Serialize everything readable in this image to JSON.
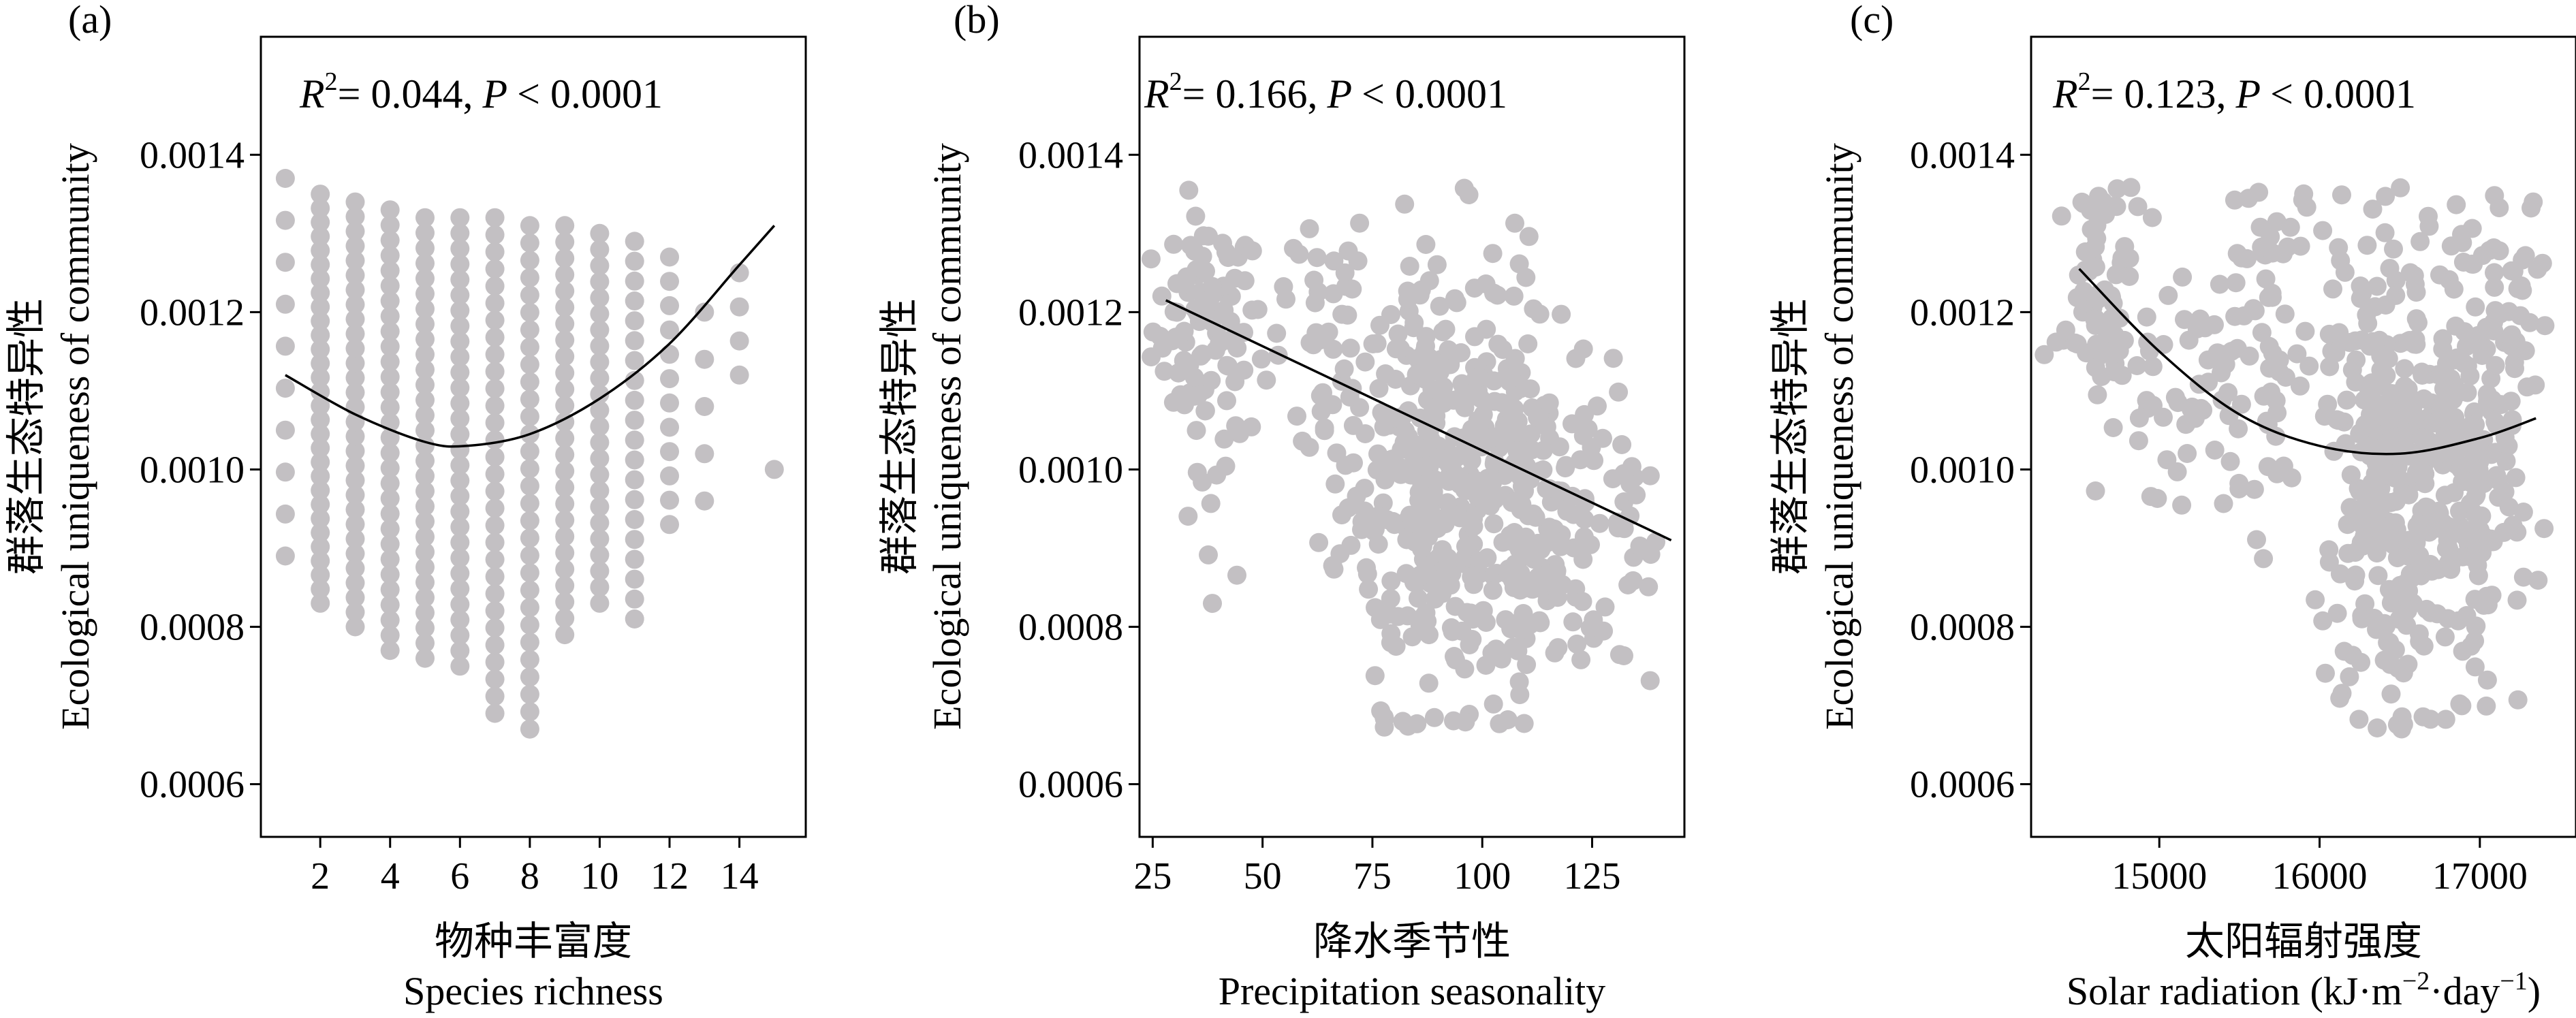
{
  "chart_data": [
    {
      "type": "scatter",
      "panel": "(a)",
      "annotation": {
        "r2_label": "R",
        "r2_value": "= 0.044,",
        "p_label": "P",
        "p_value": "< 0.0001"
      },
      "xlabel_cn": "物种丰富度",
      "xlabel_en": "Species richness",
      "ylabel_cn": "群落生态特异性",
      "ylabel_en": "Ecological uniqueness of community",
      "xlim": [
        0.3,
        15.9
      ],
      "ylim": [
        0.000533,
        0.00155
      ],
      "xticks": [
        2,
        4,
        6,
        8,
        10,
        12,
        14
      ],
      "xtick_labels": [
        "2",
        "4",
        "6",
        "8",
        "10",
        "12",
        "14"
      ],
      "yticks": [
        0.0006,
        0.0008,
        0.001,
        0.0012,
        0.0014
      ],
      "ytick_labels": [
        "0.0006",
        "0.0008",
        "0.0010",
        "0.0012",
        "0.0014"
      ],
      "columns": [
        {
          "x": 1,
          "ymin": 0.00089,
          "ymax": 0.00137,
          "n": 10
        },
        {
          "x": 2,
          "ymin": 0.00083,
          "ymax": 0.00135,
          "n": 30
        },
        {
          "x": 3,
          "ymin": 0.0008,
          "ymax": 0.00134,
          "n": 30
        },
        {
          "x": 4,
          "ymin": 0.00077,
          "ymax": 0.00133,
          "n": 30
        },
        {
          "x": 5,
          "ymin": 0.00076,
          "ymax": 0.00132,
          "n": 30
        },
        {
          "x": 6,
          "ymin": 0.00075,
          "ymax": 0.00132,
          "n": 30
        },
        {
          "x": 7,
          "ymin": 0.00069,
          "ymax": 0.00132,
          "n": 30
        },
        {
          "x": 8,
          "ymin": 0.00067,
          "ymax": 0.00131,
          "n": 30
        },
        {
          "x": 9,
          "ymin": 0.00079,
          "ymax": 0.00131,
          "n": 26
        },
        {
          "x": 10,
          "ymin": 0.00083,
          "ymax": 0.0013,
          "n": 24
        },
        {
          "x": 11,
          "ymin": 0.00081,
          "ymax": 0.00129,
          "n": 20
        },
        {
          "x": 12,
          "ymin": 0.00093,
          "ymax": 0.00127,
          "n": 12
        },
        {
          "x": 13,
          "ymin": 0.00096,
          "ymax": 0.0012,
          "n": 5
        },
        {
          "x": 14,
          "ymin": 0.00112,
          "ymax": 0.00125,
          "n": 4
        },
        {
          "x": 15,
          "ymin": 0.001,
          "ymax": 0.001,
          "n": 1
        }
      ],
      "fit": {
        "type": "quadratic",
        "x": [
          1,
          3,
          5,
          6.2,
          8,
          10,
          12,
          14,
          15
        ],
        "y": [
          0.00112,
          0.00107,
          0.001035,
          0.00103,
          0.001045,
          0.00109,
          0.00116,
          0.00126,
          0.00131
        ]
      }
    },
    {
      "type": "scatter",
      "panel": "(b)",
      "annotation": {
        "r2_label": "R",
        "r2_value": "= 0.166,",
        "p_label": "P",
        "p_value": "< 0.0001"
      },
      "xlabel_cn": "降水季节性",
      "xlabel_en": "Precipitation seasonality",
      "ylabel_cn": "群落生态特异性",
      "ylabel_en": "Ecological uniqueness of community",
      "xlim": [
        22,
        146
      ],
      "ylim": [
        0.000533,
        0.00155
      ],
      "xticks": [
        25,
        50,
        75,
        100,
        125
      ],
      "xtick_labels": [
        "25",
        "50",
        "75",
        "100",
        "125"
      ],
      "yticks": [
        0.0006,
        0.0008,
        0.001,
        0.0012,
        0.0014
      ],
      "ytick_labels": [
        "0.0006",
        "0.0008",
        "0.0010",
        "0.0012",
        "0.0014"
      ],
      "clusters": [
        {
          "cx": 37,
          "cy": 0.00118,
          "sx": 6,
          "sy": 7e-05,
          "n": 90
        },
        {
          "cx": 40,
          "cy": 0.00092,
          "sx": 4,
          "sy": 8e-05,
          "n": 10
        },
        {
          "cx": 60,
          "cy": 0.00118,
          "sx": 8,
          "sy": 9e-05,
          "n": 40
        },
        {
          "cx": 88,
          "cy": 0.001,
          "sx": 10,
          "sy": 0.00015,
          "n": 320
        },
        {
          "cx": 108,
          "cy": 0.00095,
          "sx": 9,
          "sy": 0.00013,
          "n": 180
        },
        {
          "cx": 130,
          "cy": 0.00092,
          "sx": 8,
          "sy": 9e-05,
          "n": 40
        }
      ],
      "fit": {
        "type": "linear",
        "x": [
          28,
          143
        ],
        "y": [
          0.001215,
          0.00091
        ]
      }
    },
    {
      "type": "scatter",
      "panel": "(c)",
      "annotation": {
        "r2_label": "R",
        "r2_value": "= 0.123,",
        "p_label": "P",
        "p_value": "< 0.0001"
      },
      "xlabel_cn": "太阳辐射强度",
      "xlabel_en": "Solar radiation (kJ·m",
      "xlabel_en_sup1": "−2",
      "xlabel_en_mid": "·day",
      "xlabel_en_sup2": "−1",
      "xlabel_en_end": ")",
      "ylabel_cn": "群落生态特异性",
      "ylabel_en": "Ecological uniqueness of community",
      "xlim": [
        14200,
        17600
      ],
      "ylim": [
        0.000533,
        0.00155
      ],
      "xticks": [
        15000,
        16000,
        17000
      ],
      "xtick_labels": [
        "15000",
        "16000",
        "17000"
      ],
      "yticks": [
        0.0006,
        0.0008,
        0.001,
        0.0012,
        0.0014
      ],
      "ytick_labels": [
        "0.0006",
        "0.0008",
        "0.0010",
        "0.0012",
        "0.0014"
      ],
      "clusters": [
        {
          "cx": 14650,
          "cy": 0.00122,
          "sx": 130,
          "sy": 9e-05,
          "n": 80
        },
        {
          "cx": 15200,
          "cy": 0.0011,
          "sx": 180,
          "sy": 0.00011,
          "n": 50
        },
        {
          "cx": 15700,
          "cy": 0.00118,
          "sx": 150,
          "sy": 0.00012,
          "n": 60
        },
        {
          "cx": 16400,
          "cy": 0.001,
          "sx": 170,
          "sy": 0.00015,
          "n": 250
        },
        {
          "cx": 16900,
          "cy": 0.001,
          "sx": 200,
          "sy": 0.00014,
          "n": 220
        },
        {
          "cx": 17200,
          "cy": 0.00118,
          "sx": 100,
          "sy": 0.0001,
          "n": 40
        }
      ],
      "fit": {
        "type": "quadratic",
        "x": [
          14500,
          15000,
          15500,
          16000,
          16500,
          17000,
          17350
        ],
        "y": [
          0.001255,
          0.00115,
          0.00107,
          0.00103,
          0.00102,
          0.00104,
          0.001065
        ]
      }
    }
  ]
}
